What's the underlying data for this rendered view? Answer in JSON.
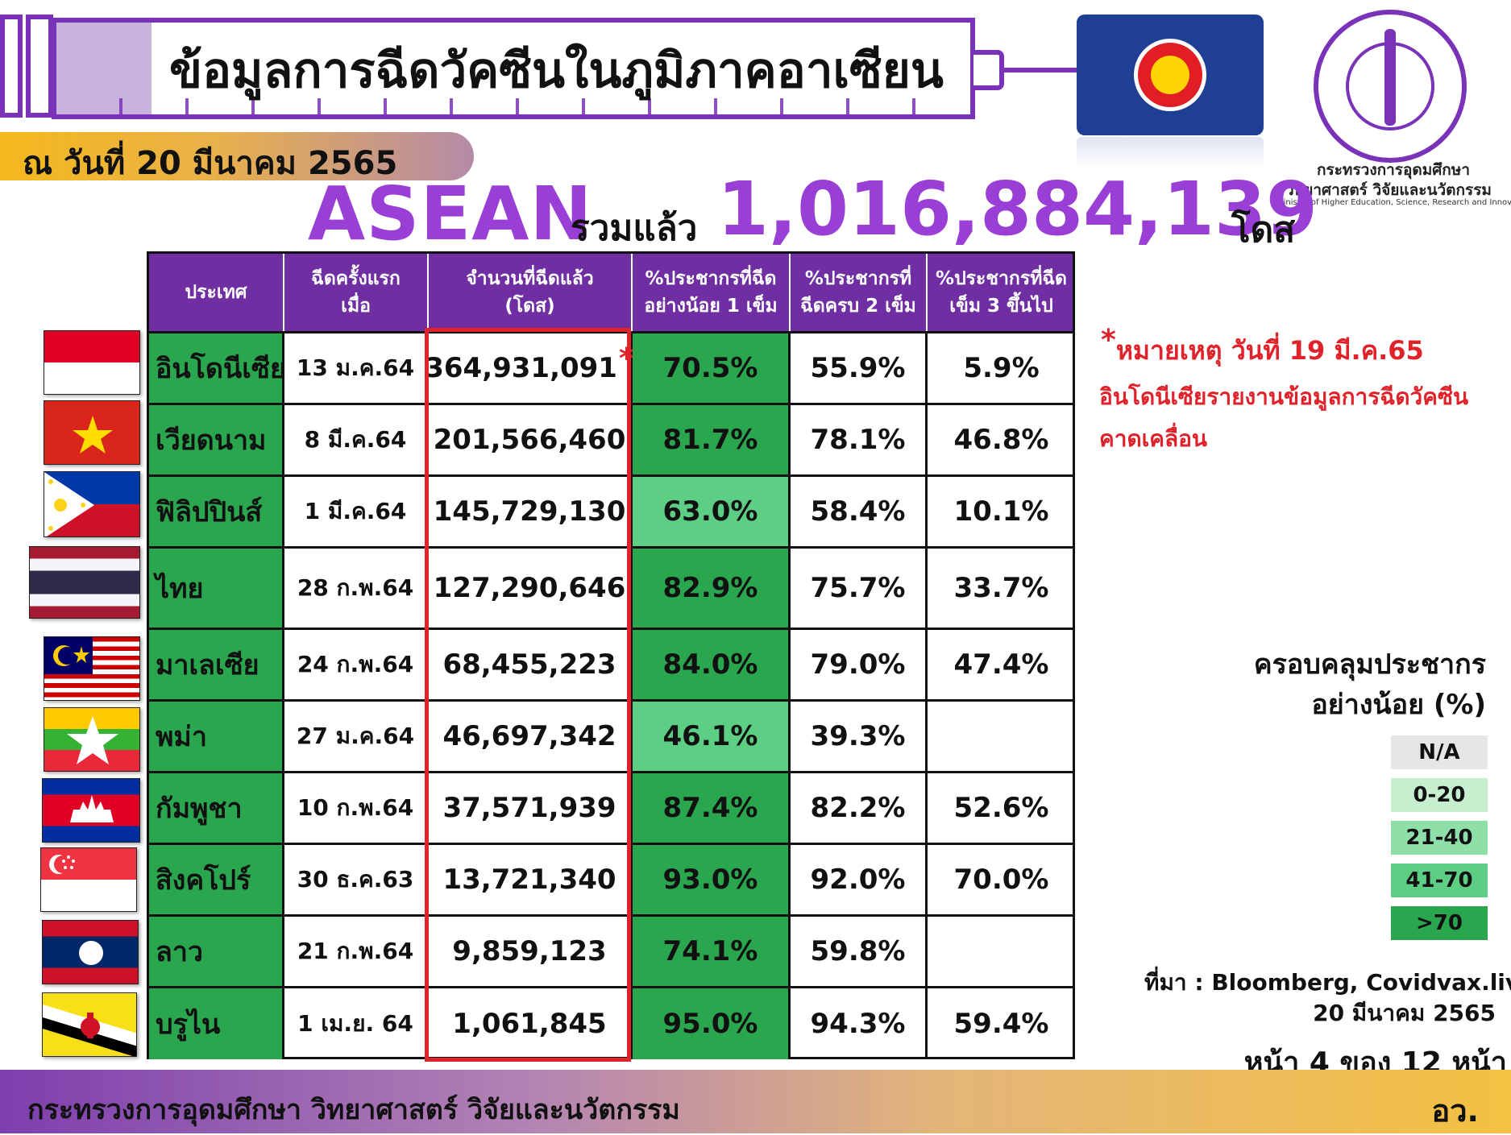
{
  "header": {
    "title": "ข้อมูลการฉีดวัคซีนในภูมิภาคอาเซียน",
    "date_label": "ณ วันที่ 20 มีนาคม 2565"
  },
  "ministry": {
    "name_th_line1": "กระทรวงการอุดมศึกษา",
    "name_th_line2": "วิทยาศาสตร์ วิจัยและนวัตกรรม",
    "name_en": "Ministry of Higher Education, Science, Research and Innovation"
  },
  "total": {
    "region": "ASEAN",
    "label": "รวมแล้ว",
    "value": "1,016,884,139",
    "unit": "โดส"
  },
  "table": {
    "headers": [
      "ประเทศ",
      "ฉีดครั้งแรก\nเมื่อ",
      "จำนวนที่ฉีดแล้ว\n(โดส)",
      "%ประชากรที่ฉีด\nอย่างน้อย 1 เข็ม",
      "%ประชากรที่\nฉีดครบ 2 เข็ม",
      "%ประชากรที่ฉีด\nเข็ม 3 ขึ้นไป"
    ],
    "rows": [
      {
        "flag": "indonesia-flag",
        "country": "อินโดนีเซีย",
        "first_dose": "13 ม.ค.64",
        "doses": "364,931,091",
        "asterisk": "*",
        "pct1": "70.5%",
        "pct2": "55.9%",
        "pct3": "5.9%",
        "shade": "dark"
      },
      {
        "flag": "vietnam-flag",
        "country": "เวียดนาม",
        "first_dose": "8 มี.ค.64",
        "doses": "201,566,460",
        "pct1": "81.7%",
        "pct2": "78.1%",
        "pct3": "46.8%",
        "shade": "dark"
      },
      {
        "flag": "philippines-flag",
        "country": "ฟิลิปปินส์",
        "first_dose": "1 มี.ค.64",
        "doses": "145,729,130",
        "pct1": "63.0%",
        "pct2": "58.4%",
        "pct3": "10.1%",
        "shade": "light"
      },
      {
        "flag": "thailand-flag",
        "country": "ไทย",
        "first_dose": "28 ก.พ.64",
        "doses": "127,290,646",
        "pct1": "82.9%",
        "pct2": "75.7%",
        "pct3": "33.7%",
        "shade": "dark"
      },
      {
        "flag": "malaysia-flag",
        "country": "มาเลเซีย",
        "first_dose": "24 ก.พ.64",
        "doses": "68,455,223",
        "pct1": "84.0%",
        "pct2": "79.0%",
        "pct3": "47.4%",
        "shade": "dark"
      },
      {
        "flag": "myanmar-flag",
        "country": "พม่า",
        "first_dose": "27 ม.ค.64",
        "doses": "46,697,342",
        "pct1": "46.1%",
        "pct2": "39.3%",
        "pct3": "",
        "shade": "light"
      },
      {
        "flag": "cambodia-flag",
        "country": "กัมพูชา",
        "first_dose": "10 ก.พ.64",
        "doses": "37,571,939",
        "pct1": "87.4%",
        "pct2": "82.2%",
        "pct3": "52.6%",
        "shade": "dark"
      },
      {
        "flag": "singapore-flag",
        "country": "สิงคโปร์",
        "first_dose": "30 ธ.ค.63",
        "doses": "13,721,340",
        "pct1": "93.0%",
        "pct2": "92.0%",
        "pct3": "70.0%",
        "shade": "dark"
      },
      {
        "flag": "laos-flag",
        "country": "ลาว",
        "first_dose": "21 ก.พ.64",
        "doses": "9,859,123",
        "pct1": "74.1%",
        "pct2": "59.8%",
        "pct3": "",
        "shade": "dark"
      },
      {
        "flag": "brunei-flag",
        "country": "บรูไน",
        "first_dose": "1 เม.ย. 64",
        "doses": "1,061,845",
        "pct1": "95.0%",
        "pct2": "94.3%",
        "pct3": "59.4%",
        "shade": "dark"
      }
    ]
  },
  "note": {
    "asterisk": "*",
    "line1": "หมายเหตุ วันที่ 19 มี.ค.65",
    "line2": "อินโดนีเซียรายงานข้อมูลการฉีดวัคซีน",
    "line3": "คาดเคลื่อน"
  },
  "legend": {
    "title": "ครอบคลุมประชากร\nอย่างน้อย (%)",
    "items": [
      {
        "label": "N/A",
        "color": "#e6e6e6"
      },
      {
        "label": "0-20",
        "color": "#c6efd0"
      },
      {
        "label": "21-40",
        "color": "#8fe0a8"
      },
      {
        "label": "41-70",
        "color": "#5dcf84"
      },
      {
        "label": ">70",
        "color": "#2aa64f"
      }
    ]
  },
  "source": {
    "line1": "ที่มา : Bloomberg, Covidvax.live",
    "line2": "20 มีนาคม 2565"
  },
  "page": "หน้า 4 ของ 12 หน้า",
  "footer": {
    "left": "กระทรวงการอุดมศึกษา วิทยาศาสตร์ วิจัยและนวัตกรรม",
    "right": "อว."
  },
  "colors": {
    "purple": "#7a32b8",
    "header_purple": "#6f2fa2",
    "green_dark": "#2aa64f",
    "green_light": "#5dcf84",
    "red": "#e0222a"
  }
}
